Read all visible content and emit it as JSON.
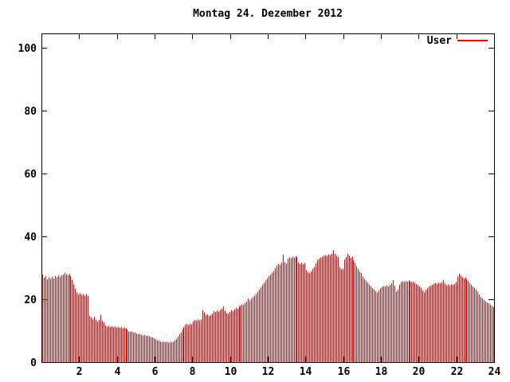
{
  "title": "Montag 24. Dezember 2012",
  "legend": {
    "label": "User"
  },
  "colors": {
    "background": "#ffffff",
    "axis": "#000000",
    "text": "#000000",
    "series_user": "#ff0000"
  },
  "chart_data": {
    "type": "bar",
    "style": "impulses",
    "title": "Montag 24. Dezember 2012",
    "xlabel": "",
    "ylabel": "",
    "xlim": [
      0,
      24
    ],
    "ylim": [
      0,
      104.5
    ],
    "x_ticks": [
      2,
      4,
      6,
      8,
      10,
      12,
      14,
      16,
      18,
      20,
      22,
      24
    ],
    "y_ticks": [
      0,
      20,
      40,
      60,
      80,
      100
    ],
    "grid": false,
    "legend_position": "top-right",
    "x_unit": "hour-of-day",
    "sample_interval_minutes": 5,
    "series": [
      {
        "name": "User",
        "color": "#ff0000",
        "values": [
          27.9,
          26.8,
          27.4,
          26.3,
          27.0,
          26.5,
          27.2,
          26.6,
          27.4,
          26.9,
          27.6,
          27.1,
          27.6,
          27.9,
          28.3,
          28.0,
          27.7,
          28.1,
          27.3,
          26.2,
          24.8,
          23.4,
          22.2,
          21.5,
          21.9,
          21.4,
          21.7,
          21.2,
          21.6,
          21.1,
          14.7,
          14.2,
          13.7,
          14.4,
          13.6,
          12.9,
          13.4,
          15.1,
          13.2,
          12.6,
          11.6,
          11.3,
          11.5,
          11.2,
          11.4,
          11.1,
          11.3,
          11.0,
          11.2,
          10.9,
          11.1,
          10.8,
          11.0,
          10.7,
          10.4,
          9.8,
          9.6,
          9.7,
          9.4,
          9.5,
          9.1,
          8.9,
          9.0,
          8.7,
          8.5,
          8.6,
          8.3,
          8.4,
          8.2,
          8.0,
          7.8,
          7.6,
          7.3,
          7.0,
          6.8,
          6.6,
          6.4,
          6.5,
          6.3,
          6.4,
          6.2,
          6.4,
          6.3,
          6.5,
          6.9,
          7.4,
          8.1,
          8.8,
          9.5,
          10.4,
          11.2,
          11.9,
          12.3,
          11.8,
          12.2,
          12.0,
          13.0,
          13.4,
          13.2,
          13.5,
          13.3,
          13.6,
          16.5,
          15.8,
          14.9,
          15.2,
          14.6,
          15.0,
          15.6,
          16.2,
          15.9,
          16.4,
          16.1,
          16.6,
          17.1,
          17.7,
          16.3,
          15.7,
          15.4,
          16.0,
          16.6,
          16.2,
          16.8,
          17.3,
          17.0,
          17.6,
          18.0,
          18.4,
          18.2,
          18.7,
          19.3,
          20.3,
          19.6,
          20.1,
          20.6,
          21.1,
          21.6,
          22.3,
          23.0,
          23.8,
          24.5,
          25.2,
          25.9,
          26.6,
          27.4,
          27.9,
          28.4,
          29.0,
          29.9,
          30.7,
          31.3,
          31.0,
          31.6,
          34.2,
          31.8,
          31.4,
          32.9,
          33.3,
          33.0,
          33.5,
          33.2,
          33.7,
          33.4,
          31.8,
          31.3,
          31.6,
          31.2,
          31.5,
          29.3,
          28.6,
          28.2,
          28.9,
          29.6,
          30.3,
          31.4,
          32.5,
          32.9,
          33.3,
          33.6,
          33.9,
          34.1,
          33.8,
          34.3,
          34.0,
          34.6,
          35.7,
          34.4,
          33.9,
          33.4,
          30.2,
          29.5,
          29.8,
          32.6,
          33.4,
          34.5,
          33.8,
          33.2,
          33.6,
          32.4,
          31.6,
          30.5,
          29.6,
          28.9,
          28.3,
          27.2,
          26.5,
          25.9,
          25.3,
          24.7,
          24.2,
          23.6,
          23.2,
          22.5,
          22.1,
          22.8,
          23.4,
          23.9,
          24.2,
          24.0,
          24.4,
          24.1,
          24.6,
          25.1,
          26.1,
          24.3,
          22.4,
          23.1,
          24.6,
          25.4,
          25.7,
          25.5,
          25.8,
          25.6,
          25.9,
          25.7,
          25.4,
          25.6,
          25.2,
          24.8,
          24.5,
          24.1,
          23.7,
          22.8,
          22.2,
          23.0,
          23.6,
          24.0,
          24.3,
          24.6,
          24.9,
          25.2,
          25.0,
          25.3,
          25.1,
          25.4,
          26.2,
          24.9,
          24.4,
          24.7,
          24.3,
          24.8,
          24.5,
          25.0,
          25.4,
          27.2,
          28.1,
          27.5,
          27.0,
          26.6,
          26.9,
          26.3,
          25.8,
          25.2,
          24.6,
          24.0,
          23.5,
          23.0,
          22.4,
          21.5,
          20.8,
          20.2,
          19.7,
          19.4,
          19.0,
          18.7,
          18.4,
          17.9,
          17.5
        ]
      }
    ]
  }
}
